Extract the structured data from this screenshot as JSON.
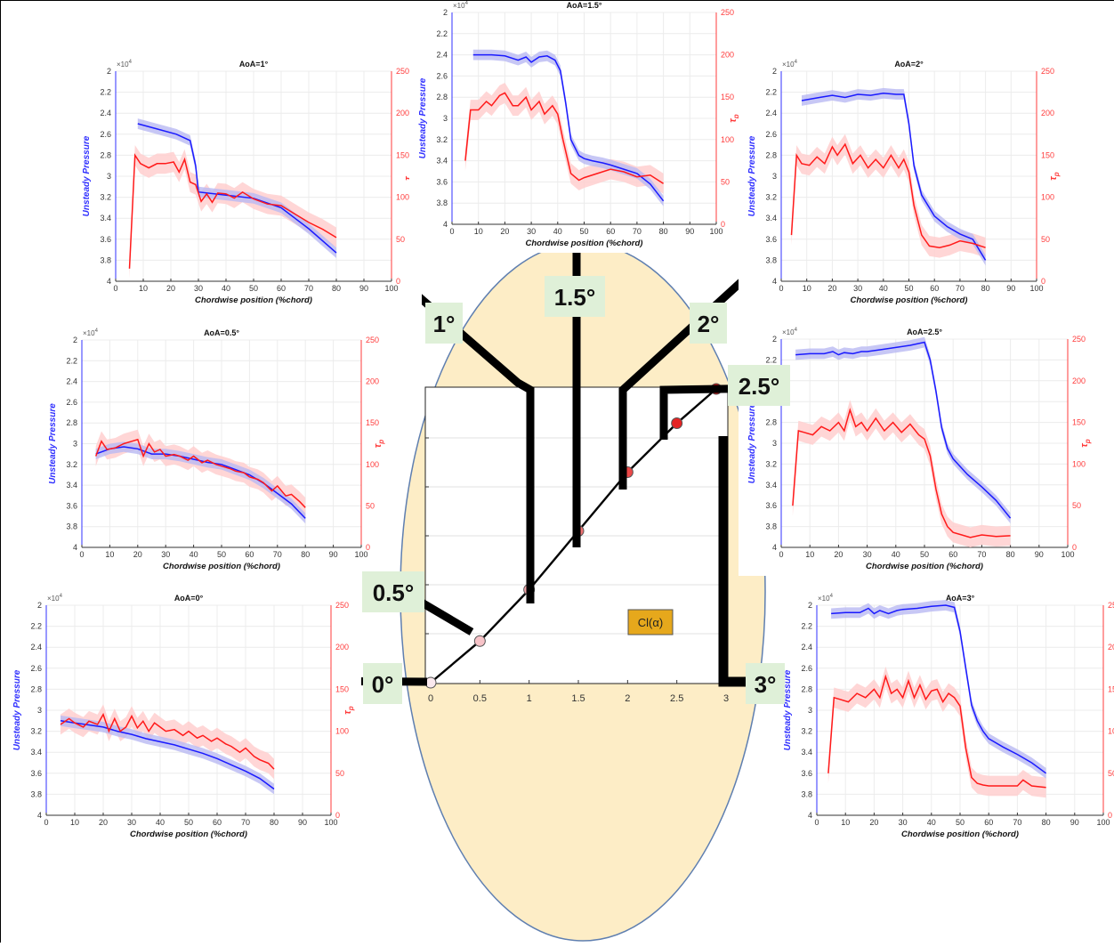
{
  "colors": {
    "ellipse_fill": "#fdedc6",
    "ellipse_stroke": "#5f7fb0",
    "pressure_line": "#1a1aff",
    "pressure_band": "#b9b9f2",
    "tau_line": "#ff1a1a",
    "tau_band": "#ffcfcf",
    "label_box": "#dff0d8",
    "cl_box": "#e6a81c",
    "axis_right": "#ff3b3b",
    "axis_left": "#3030ff"
  },
  "common": {
    "xlabel": "Chordwise position (%chord)",
    "ylabel_left": "Unsteady Pressure",
    "ylabel_right": "τ_p",
    "ylabel_right_base": "τ",
    "ylabel_right_sub": "p",
    "exponent_base": "×10",
    "exponent_power": "4",
    "x_ticks": [
      "0",
      "10",
      "20",
      "30",
      "40",
      "50",
      "60",
      "70",
      "80",
      "90",
      "100"
    ],
    "y_left_ticks": [
      "2",
      "2.2",
      "2.4",
      "2.6",
      "2.8",
      "3",
      "3.2",
      "3.4",
      "3.6",
      "3.8",
      "4"
    ],
    "y_right_ticks": [
      "0",
      "50",
      "100",
      "150",
      "200",
      "250"
    ]
  },
  "center_plot": {
    "x_ticks": [
      "0",
      "0.5",
      "1",
      "1.5",
      "2",
      "2.5",
      "3"
    ],
    "legend": "Cl(α)"
  },
  "angle_labels": {
    "a0": "0°",
    "a05": "0.5°",
    "a1": "1°",
    "a15": "1.5°",
    "a2": "2°",
    "a25": "2.5°",
    "a3": "3°"
  },
  "chart_data": [
    {
      "type": "line",
      "title": "AoA=1°",
      "xlabel": "Chordwise position (%chord)",
      "ylabel": "Unsteady Pressure",
      "y2label": "τ_p",
      "xlim": [
        0,
        100
      ],
      "ylim": [
        4,
        2
      ],
      "y2lim": [
        0,
        250
      ],
      "series": [
        {
          "x": [
            8,
            15,
            22,
            27,
            29,
            30,
            40,
            50,
            60,
            70,
            80
          ],
          "values": [
            2.5,
            2.55,
            2.6,
            2.66,
            2.9,
            3.15,
            3.18,
            3.21,
            3.3,
            3.5,
            3.73
          ]
        },
        {
          "x": [
            5,
            7,
            9,
            12,
            15,
            18,
            21,
            23,
            25,
            27,
            29,
            31,
            33,
            35,
            37,
            40,
            43,
            46,
            50,
            55,
            60,
            65,
            70,
            75,
            80
          ],
          "values": [
            15,
            150,
            140,
            135,
            140,
            140,
            142,
            130,
            145,
            118,
            115,
            95,
            104,
            94,
            105,
            104,
            99,
            106,
            98,
            92,
            90,
            80,
            70,
            62,
            52
          ],
          "axis": "right"
        }
      ]
    },
    {
      "type": "line",
      "title": "AoA=1.5°",
      "xlabel": "Chordwise position (%chord)",
      "ylabel": "Unsteady Pressure",
      "y2label": "τ_p",
      "xlim": [
        0,
        100
      ],
      "ylim": [
        4,
        2
      ],
      "y2lim": [
        0,
        250
      ],
      "series": [
        {
          "x": [
            8,
            15,
            20,
            25,
            28,
            30,
            33,
            36,
            39,
            41,
            43,
            45,
            48,
            50,
            53,
            57,
            60,
            65,
            70,
            75,
            80
          ],
          "values": [
            2.4,
            2.4,
            2.41,
            2.45,
            2.42,
            2.47,
            2.42,
            2.41,
            2.45,
            2.55,
            2.85,
            3.2,
            3.35,
            3.38,
            3.4,
            3.42,
            3.44,
            3.48,
            3.52,
            3.62,
            3.78
          ]
        },
        {
          "x": [
            5,
            7,
            10,
            13,
            15,
            18,
            20,
            23,
            25,
            28,
            30,
            33,
            35,
            38,
            40,
            42,
            45,
            48,
            50,
            55,
            60,
            65,
            70,
            75,
            80
          ],
          "values": [
            75,
            135,
            135,
            145,
            140,
            152,
            155,
            140,
            140,
            150,
            135,
            145,
            130,
            140,
            130,
            100,
            60,
            52,
            55,
            60,
            65,
            62,
            56,
            58,
            48
          ],
          "axis": "right"
        }
      ]
    },
    {
      "type": "line",
      "title": "AoA=2°",
      "xlabel": "Chordwise position (%chord)",
      "ylabel": "Unsteady Pressure",
      "y2label": "τ_p",
      "xlim": [
        0,
        100
      ],
      "ylim": [
        4,
        2
      ],
      "y2lim": [
        0,
        250
      ],
      "series": [
        {
          "x": [
            8,
            15,
            20,
            25,
            30,
            35,
            40,
            45,
            48,
            50,
            52,
            55,
            58,
            60,
            65,
            70,
            75,
            80
          ],
          "values": [
            2.28,
            2.25,
            2.23,
            2.25,
            2.22,
            2.23,
            2.21,
            2.22,
            2.22,
            2.5,
            2.9,
            3.18,
            3.3,
            3.38,
            3.48,
            3.55,
            3.6,
            3.8
          ]
        },
        {
          "x": [
            4,
            6,
            8,
            11,
            14,
            17,
            20,
            22,
            25,
            28,
            31,
            34,
            37,
            40,
            43,
            46,
            48,
            50,
            52,
            55,
            58,
            62,
            66,
            70,
            75,
            80
          ],
          "values": [
            55,
            150,
            140,
            138,
            148,
            140,
            160,
            150,
            163,
            140,
            150,
            135,
            145,
            135,
            150,
            135,
            145,
            130,
            90,
            55,
            42,
            40,
            43,
            48,
            45,
            40
          ],
          "axis": "right"
        }
      ]
    },
    {
      "type": "line",
      "title": "AoA=0.5°",
      "xlabel": "Chordwise position (%chord)",
      "ylabel": "Unsteady Pressure",
      "y2label": "τ_p",
      "xlim": [
        0,
        100
      ],
      "ylim": [
        4,
        2
      ],
      "y2lim": [
        0,
        250
      ],
      "series": [
        {
          "x": [
            5,
            10,
            15,
            20,
            25,
            30,
            35,
            40,
            45,
            50,
            55,
            60,
            65,
            70,
            75,
            80
          ],
          "values": [
            3.1,
            3.05,
            3.03,
            3.05,
            3.1,
            3.1,
            3.12,
            3.15,
            3.18,
            3.2,
            3.25,
            3.3,
            3.38,
            3.48,
            3.58,
            3.72
          ]
        },
        {
          "x": [
            5,
            7,
            9,
            12,
            15,
            18,
            20,
            22,
            24,
            26,
            28,
            30,
            33,
            35,
            38,
            40,
            43,
            45,
            48,
            50,
            53,
            55,
            58,
            60,
            63,
            65,
            68,
            70,
            73,
            75,
            78,
            80
          ],
          "values": [
            110,
            128,
            118,
            120,
            125,
            128,
            130,
            110,
            125,
            115,
            118,
            110,
            112,
            110,
            105,
            110,
            102,
            105,
            100,
            98,
            95,
            92,
            90,
            85,
            82,
            78,
            68,
            74,
            62,
            64,
            55,
            48
          ],
          "axis": "right"
        }
      ]
    },
    {
      "type": "line",
      "title": "AoA=2.5°",
      "xlabel": "Chordwise position (%chord)",
      "ylabel": "Unsteady Pressure",
      "y2label": "τ_p",
      "xlim": [
        0,
        100
      ],
      "ylim": [
        4,
        2
      ],
      "y2lim": [
        0,
        250
      ],
      "series": [
        {
          "x": [
            5,
            10,
            15,
            18,
            20,
            22,
            25,
            28,
            30,
            35,
            40,
            45,
            50,
            52,
            54,
            56,
            58,
            60,
            65,
            70,
            75,
            80
          ],
          "values": [
            2.15,
            2.14,
            2.14,
            2.12,
            2.15,
            2.13,
            2.14,
            2.12,
            2.12,
            2.1,
            2.08,
            2.06,
            2.03,
            2.2,
            2.5,
            2.85,
            3.05,
            3.15,
            3.3,
            3.42,
            3.55,
            3.72
          ]
        },
        {
          "x": [
            4,
            6,
            8,
            11,
            14,
            17,
            20,
            22,
            24,
            26,
            28,
            30,
            33,
            36,
            39,
            42,
            45,
            48,
            50,
            52,
            54,
            56,
            58,
            60,
            63,
            66,
            70,
            75,
            80
          ],
          "values": [
            50,
            140,
            138,
            135,
            145,
            140,
            150,
            140,
            165,
            145,
            150,
            140,
            155,
            140,
            150,
            138,
            148,
            135,
            130,
            110,
            70,
            40,
            25,
            18,
            15,
            12,
            15,
            13,
            14
          ],
          "axis": "right"
        }
      ]
    },
    {
      "type": "line",
      "title": "AoA=0°",
      "xlabel": "Chordwise position (%chord)",
      "ylabel": "Unsteady Pressure",
      "y2label": "τ_p",
      "xlim": [
        0,
        100
      ],
      "ylim": [
        4,
        2
      ],
      "y2lim": [
        0,
        250
      ],
      "series": [
        {
          "x": [
            5,
            10,
            15,
            20,
            25,
            30,
            35,
            40,
            45,
            50,
            55,
            60,
            65,
            70,
            75,
            80
          ],
          "values": [
            3.1,
            3.12,
            3.14,
            3.16,
            3.2,
            3.23,
            3.27,
            3.3,
            3.33,
            3.37,
            3.41,
            3.46,
            3.52,
            3.58,
            3.65,
            3.75
          ]
        },
        {
          "x": [
            5,
            8,
            10,
            13,
            15,
            18,
            20,
            22,
            24,
            26,
            28,
            30,
            32,
            34,
            36,
            38,
            40,
            42,
            45,
            48,
            50,
            53,
            55,
            58,
            60,
            63,
            65,
            68,
            70,
            73,
            75,
            78,
            80
          ],
          "values": [
            108,
            115,
            110,
            105,
            112,
            108,
            120,
            100,
            115,
            100,
            105,
            118,
            104,
            112,
            100,
            110,
            105,
            100,
            102,
            95,
            100,
            92,
            95,
            88,
            92,
            85,
            82,
            75,
            80,
            70,
            66,
            62,
            55
          ],
          "axis": "right"
        }
      ]
    },
    {
      "type": "line",
      "title": "AoA=3°",
      "xlabel": "Chordwise position (%chord)",
      "ylabel": "Unsteady Pressure",
      "y2label": "τ_p",
      "xlim": [
        0,
        100
      ],
      "ylim": [
        4,
        2
      ],
      "y2lim": [
        0,
        250
      ],
      "series": [
        {
          "x": [
            5,
            10,
            15,
            18,
            20,
            22,
            25,
            28,
            30,
            35,
            40,
            45,
            48,
            50,
            52,
            54,
            56,
            58,
            60,
            65,
            70,
            75,
            80
          ],
          "values": [
            2.08,
            2.07,
            2.07,
            2.03,
            2.08,
            2.05,
            2.08,
            2.05,
            2.04,
            2.03,
            2.01,
            2.0,
            2.02,
            2.25,
            2.6,
            2.95,
            3.1,
            3.2,
            3.27,
            3.35,
            3.42,
            3.5,
            3.6
          ]
        },
        {
          "x": [
            4,
            6,
            8,
            11,
            14,
            17,
            20,
            22,
            24,
            26,
            28,
            30,
            32,
            34,
            36,
            38,
            40,
            42,
            44,
            46,
            48,
            50,
            52,
            54,
            56,
            58,
            60,
            65,
            70,
            72,
            75,
            80
          ],
          "values": [
            50,
            140,
            138,
            135,
            145,
            140,
            150,
            140,
            165,
            145,
            150,
            140,
            160,
            140,
            155,
            138,
            148,
            150,
            135,
            145,
            140,
            130,
            80,
            45,
            38,
            36,
            35,
            35,
            35,
            42,
            35,
            33
          ],
          "axis": "right"
        }
      ]
    },
    {
      "type": "line",
      "xlim": [
        0,
        3
      ],
      "legend": [
        "Cl(α)"
      ],
      "series": [
        {
          "name": "Cl(α)",
          "x": [
            0,
            0.5,
            1,
            1.5,
            2,
            2.5,
            2.9
          ],
          "values": [
            0,
            0.17,
            0.38,
            0.62,
            0.86,
            1.06,
            1.2
          ]
        }
      ]
    }
  ]
}
